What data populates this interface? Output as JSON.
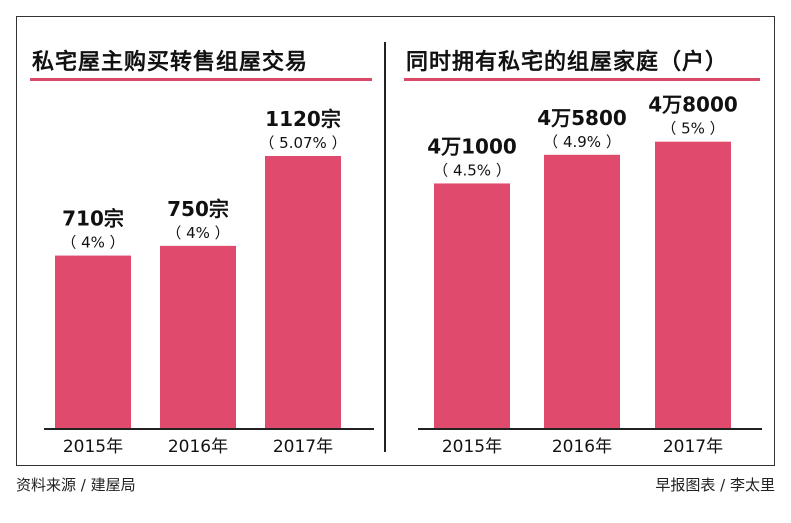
{
  "colors": {
    "bar": "#e04a6c",
    "title_rule": "#d94a69",
    "axis": "#222222"
  },
  "chart_data": [
    {
      "type": "bar",
      "title": "私宅屋主购买转售组屋交易",
      "categories": [
        "2015年",
        "2016年",
        "2017年"
      ],
      "values": [
        710,
        750,
        1120
      ],
      "value_labels": [
        "710宗",
        "750宗",
        "1120宗"
      ],
      "percent_labels": [
        "（ 4% ）",
        "（ 4% ）",
        "（ 5.07% ）"
      ],
      "unit": "宗",
      "ylim": [
        0,
        1400
      ],
      "xlabel": "",
      "ylabel": ""
    },
    {
      "type": "bar",
      "title": "同时拥有私宅的组屋家庭（户）",
      "categories": [
        "2015年",
        "2016年",
        "2017年"
      ],
      "values": [
        41000,
        45800,
        48000
      ],
      "value_labels": [
        "4万1000",
        "4万5800",
        "4万8000"
      ],
      "percent_labels": [
        "（ 4.5% ）",
        "（ 4.9% ）",
        "（ 5% ）"
      ],
      "unit": "户",
      "ylim": [
        0,
        57000
      ],
      "xlabel": "",
      "ylabel": ""
    }
  ],
  "footer": {
    "source": "资料来源 / 建屋局",
    "credit": "早报图表 / 李太里"
  }
}
